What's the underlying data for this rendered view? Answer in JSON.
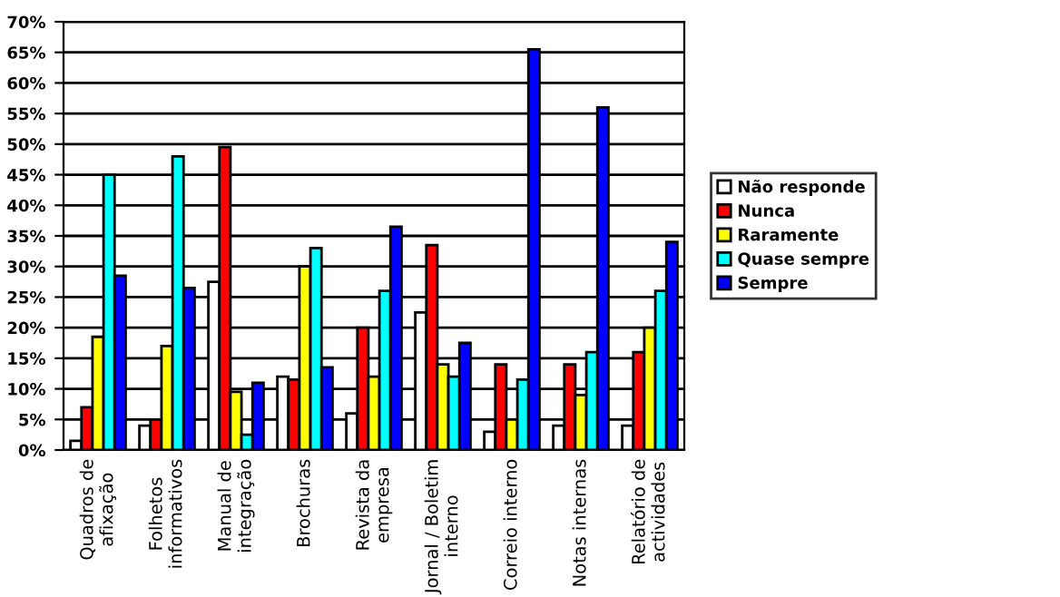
{
  "chart_data": {
    "type": "bar",
    "categories": [
      "Quadros de\nafixação",
      "Folhetos\ninformativos",
      "Manual de\nintegração",
      "Brochuras",
      "Revista da\nempresa",
      "Jornal / Boletim\ninterno",
      "Correio interno",
      "Notas internas",
      "Relatório de\nactividades"
    ],
    "series": [
      {
        "name": "Não responde",
        "color": "#ffffff",
        "values": [
          1.5,
          4,
          27.5,
          12,
          6,
          22.5,
          3,
          4,
          4
        ]
      },
      {
        "name": "Nunca",
        "color": "#ff0000",
        "values": [
          7,
          5,
          49.5,
          11.5,
          20,
          33.5,
          14,
          14,
          16
        ]
      },
      {
        "name": "Raramente",
        "color": "#ffff00",
        "values": [
          18.5,
          17,
          9.5,
          30,
          12,
          14,
          5,
          9,
          20
        ]
      },
      {
        "name": "Quase sempre",
        "color": "#00ffff",
        "values": [
          45,
          48,
          2.5,
          33,
          26,
          12,
          11.5,
          16,
          26
        ]
      },
      {
        "name": "Sempre",
        "color": "#0000ff",
        "values": [
          28.5,
          26.5,
          11,
          13.5,
          36.5,
          17.5,
          65.5,
          56,
          34
        ]
      }
    ],
    "ylim": [
      0,
      70
    ],
    "yticks": [
      {
        "value": 0,
        "label": "0%"
      },
      {
        "value": 5,
        "label": "5%"
      },
      {
        "value": 10,
        "label": "10%"
      },
      {
        "value": 15,
        "label": "15%"
      },
      {
        "value": 20,
        "label": "20%"
      },
      {
        "value": 25,
        "label": "25%"
      },
      {
        "value": 30,
        "label": "30%"
      },
      {
        "value": 35,
        "label": "35%"
      },
      {
        "value": 40,
        "label": "40%"
      },
      {
        "value": 45,
        "label": "45%"
      },
      {
        "value": 50,
        "label": "50%"
      },
      {
        "value": 55,
        "label": "55%"
      },
      {
        "value": 60,
        "label": "60%"
      },
      {
        "value": 65,
        "label": "65%"
      },
      {
        "value": 70,
        "label": "70%"
      }
    ],
    "grid": "y",
    "legend": "right"
  }
}
